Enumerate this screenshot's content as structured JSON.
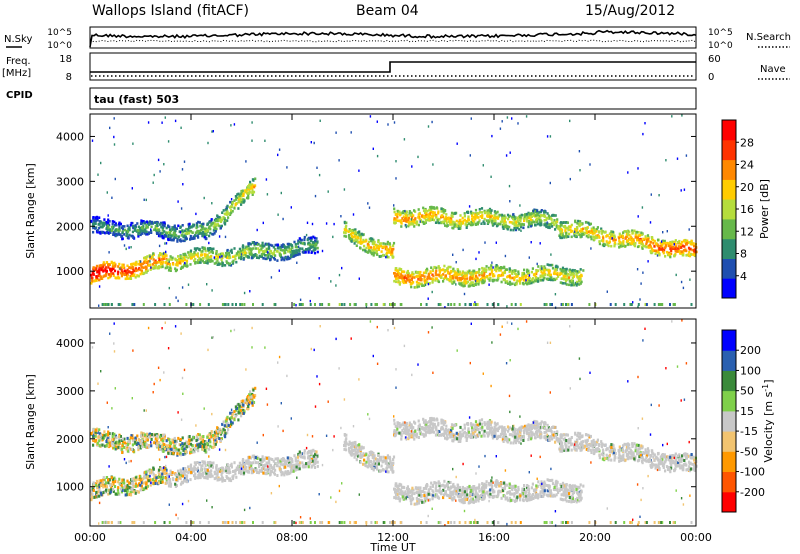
{
  "header": {
    "station": "Wallops Island (fitACF)",
    "beam": "Beam 04",
    "date": "15/Aug/2012"
  },
  "status_strip": {
    "nsky_label": "N.Sky",
    "nsearch_label": "N.Search",
    "noise_ticks": [
      "10^5",
      "10^0"
    ],
    "freq_label": "Freq.",
    "freq_unit": "[MHz]",
    "freq_ticks": [
      "18",
      "8"
    ],
    "nave_label": "Nave",
    "nave_ticks": [
      "60",
      "0"
    ],
    "cpid_label": "CPID",
    "cpid_value": "tau (fast) 503"
  },
  "chart_data": [
    {
      "type": "heatmap",
      "name": "power",
      "xlabel": "",
      "ylabel": "Slant Range [km]",
      "xlim": [
        0,
        24
      ],
      "ylim": [
        180,
        4500
      ],
      "x_tick_values": [
        0,
        4,
        8,
        12,
        16,
        20,
        24
      ],
      "y_tick_values": [
        1000,
        2000,
        3000,
        4000
      ],
      "y_tick_labels": [
        "1000",
        "2000",
        "3000",
        "4000"
      ],
      "colorbar": {
        "label": "Power [dB]",
        "tick_labels": [
          "28",
          "24",
          "20",
          "16",
          "12",
          "8",
          "4"
        ],
        "range": [
          0,
          30
        ],
        "colors": [
          "#0000ff",
          "#1f4fb0",
          "#2e8c6e",
          "#66b84a",
          "#b5dd3c",
          "#ffcc00",
          "#ff8800",
          "#ff3300",
          "#ff0000"
        ]
      },
      "echo_bands": [
        {
          "start": 0,
          "end": 3,
          "r0": 930,
          "r1": 1250,
          "p0": 30,
          "p1": 22
        },
        {
          "start": 3,
          "end": 9,
          "r0": 1250,
          "r1": 1580,
          "p0": 20,
          "p1": 12
        },
        {
          "start": 4.5,
          "end": 6.5,
          "r0": 1900,
          "r1": 2900,
          "p0": 14,
          "p1": 20
        },
        {
          "start": 10,
          "end": 12,
          "r0": 1900,
          "r1": 1420,
          "p0": 18,
          "p1": 22
        },
        {
          "start": 12,
          "end": 19.5,
          "r0": 900,
          "r1": 950,
          "p0": 24,
          "p1": 18
        },
        {
          "start": 12,
          "end": 18.5,
          "r0": 2250,
          "r1": 2150,
          "p0": 22,
          "p1": 16
        },
        {
          "start": 18.5,
          "end": 24,
          "r0": 2000,
          "r1": 1450,
          "p0": 18,
          "p1": 26
        },
        {
          "start": 0,
          "end": 4.5,
          "r0": 2000,
          "r1": 1900,
          "p0": 10,
          "p1": 14
        }
      ]
    },
    {
      "type": "heatmap",
      "name": "velocity",
      "xlabel": "Time UT",
      "ylabel": "Slant Range [km]",
      "xlim": [
        0,
        24
      ],
      "ylim": [
        180,
        4500
      ],
      "x_tick_values": [
        0,
        4,
        8,
        12,
        16,
        20,
        24
      ],
      "x_tick_labels": [
        "00:00",
        "04:00",
        "08:00",
        "12:00",
        "16:00",
        "20:00",
        "00:00"
      ],
      "y_tick_values": [
        1000,
        2000,
        3000,
        4000
      ],
      "y_tick_labels": [
        "1000",
        "2000",
        "3000",
        "4000"
      ],
      "colorbar": {
        "label": "Velocity [m s^-1]",
        "tick_labels": [
          "200",
          "100",
          "50",
          "15",
          "-15",
          "-50",
          "-100",
          "-200"
        ],
        "range": [
          -250,
          250
        ],
        "colors": [
          "#ff0000",
          "#ff5500",
          "#ff9900",
          "#f2c470",
          "#c8c8c8",
          "#7fd04a",
          "#3a8a3a",
          "#2a60b0",
          "#0000ff"
        ]
      },
      "ground_scatter_color": "#c8c8c8"
    }
  ]
}
